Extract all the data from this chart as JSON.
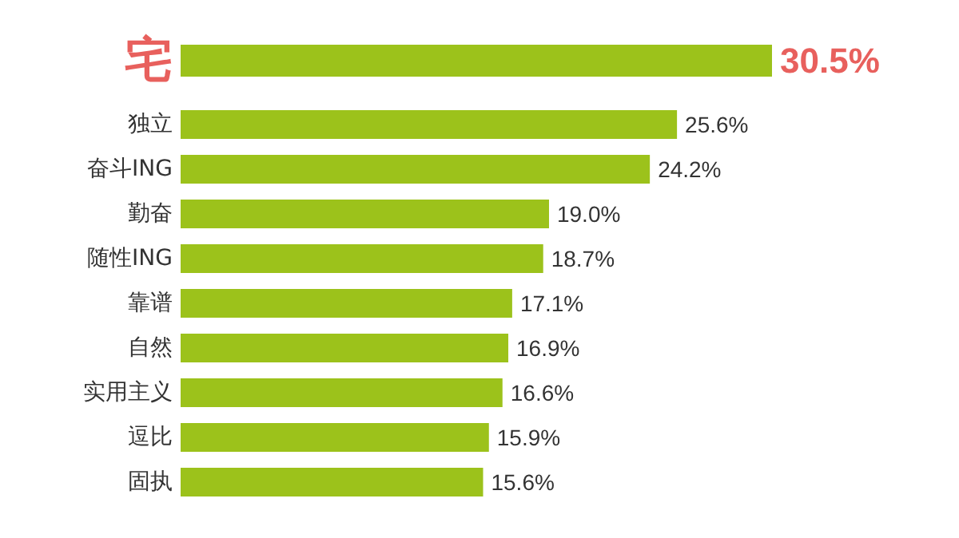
{
  "chart_data": {
    "type": "bar",
    "orientation": "horizontal",
    "categories": [
      "宅",
      "独立",
      "奋斗ING",
      "勤奋",
      "随性ING",
      "靠谱",
      "自然",
      "实用主义",
      "逗比",
      "固执"
    ],
    "values": [
      30.5,
      25.6,
      24.2,
      19.0,
      18.7,
      17.1,
      16.9,
      16.6,
      15.9,
      15.6
    ],
    "value_labels": [
      "30.5%",
      "25.6%",
      "24.2%",
      "19.0%",
      "18.7%",
      "17.1%",
      "16.9%",
      "16.6%",
      "15.9%",
      "15.6%"
    ],
    "color": "#9cc21b"
  }
}
